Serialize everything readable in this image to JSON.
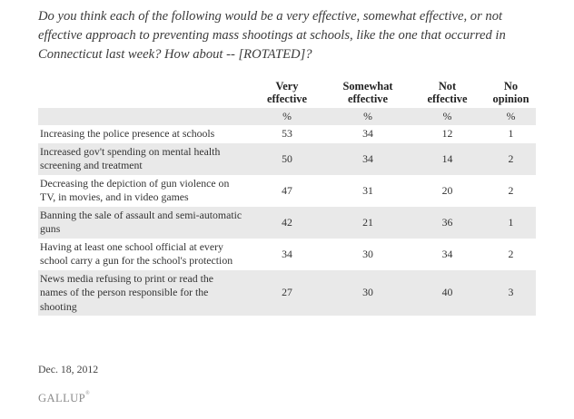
{
  "question": "Do you think each of the following would be a very effective, somewhat effective, or not effective approach to preventing mass shootings at schools, like the one that occurred in Connecticut last week? How about -- [ROTATED]?",
  "table": {
    "headers": [
      {
        "line1": "Very",
        "line2": "effective"
      },
      {
        "line1": "Somewhat",
        "line2": "effective"
      },
      {
        "line1": "Not",
        "line2": "effective"
      },
      {
        "line1": "No",
        "line2": "opinion"
      }
    ],
    "units": [
      "%",
      "%",
      "%",
      "%"
    ],
    "rows": [
      {
        "label": "Increasing the police presence at schools",
        "values": [
          "53",
          "34",
          "12",
          "1"
        ]
      },
      {
        "label": "Increased gov't spending on mental health screening and treatment",
        "values": [
          "50",
          "34",
          "14",
          "2"
        ]
      },
      {
        "label": "Decreasing the depiction of gun violence on TV, in movies, and in video games",
        "values": [
          "47",
          "31",
          "20",
          "2"
        ]
      },
      {
        "label": "Banning the sale of assault and semi-automatic guns",
        "values": [
          "42",
          "21",
          "36",
          "1"
        ]
      },
      {
        "label": "Having at least one school official at every school carry a gun for the school's protection",
        "values": [
          "34",
          "30",
          "34",
          "2"
        ]
      },
      {
        "label": "News media refusing to print or read the names of the person responsible for the shooting",
        "values": [
          "27",
          "30",
          "40",
          "3"
        ]
      }
    ]
  },
  "date": "Dec. 18, 2012",
  "logo": {
    "text": "GALLUP",
    "mark": "®"
  }
}
